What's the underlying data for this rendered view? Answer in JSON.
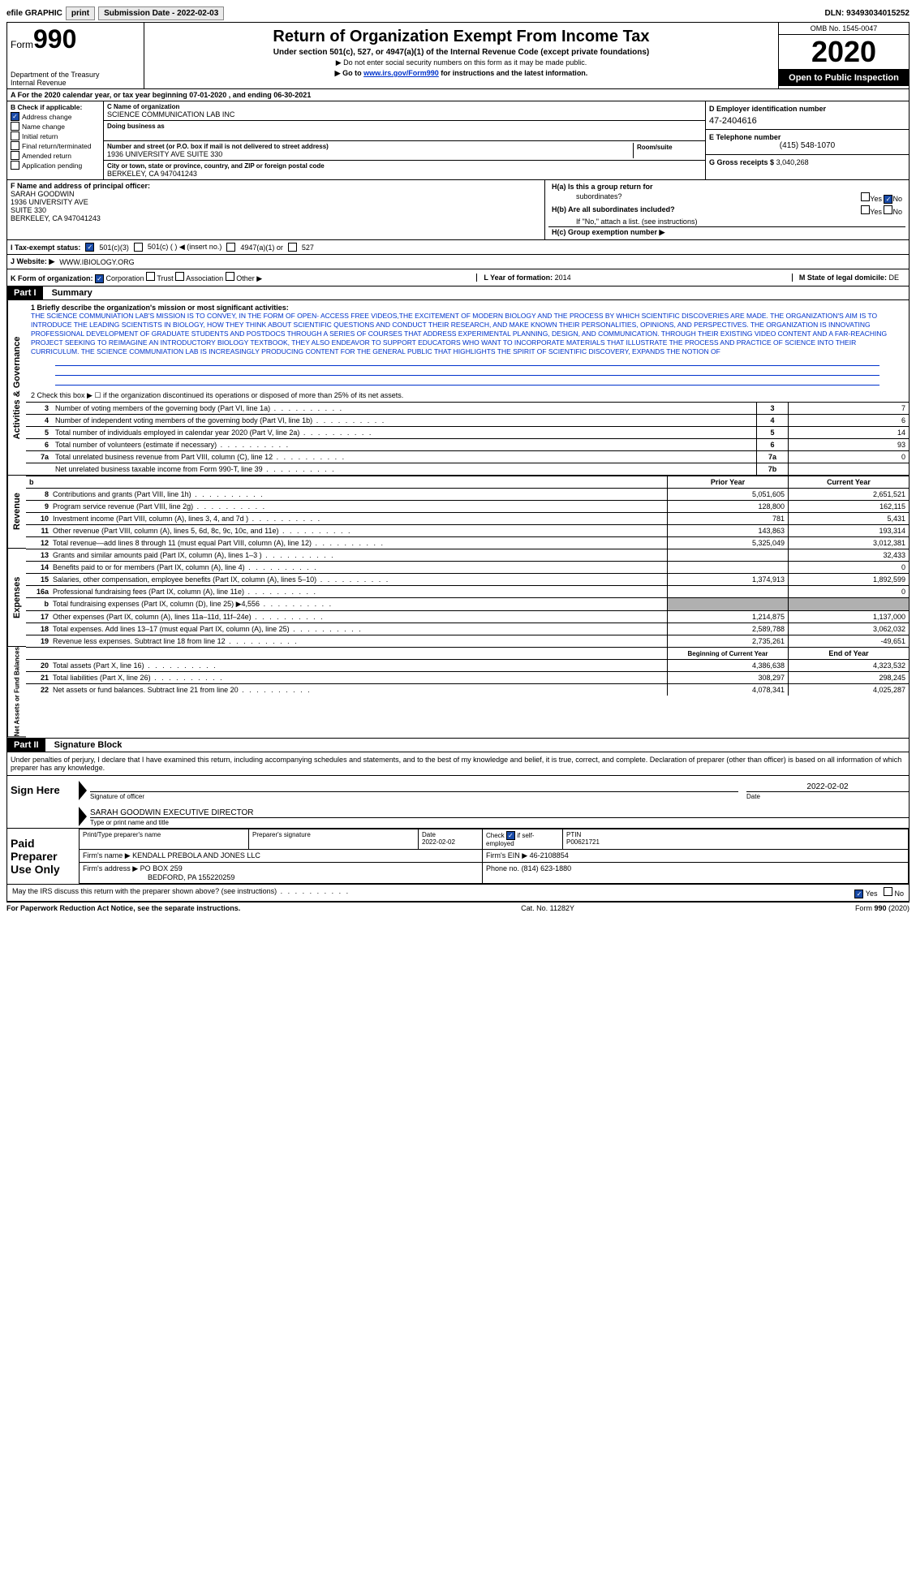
{
  "topbar": {
    "efile": "efile GRAPHIC",
    "print": "print",
    "subdate_label": "Submission Date - 2022-02-03",
    "dln_label": "DLN: 93493034015252"
  },
  "header": {
    "form_label": "Form",
    "form_num": "990",
    "dept": "Department of the Treasury\nInternal Revenue",
    "title": "Return of Organization Exempt From Income Tax",
    "subtitle": "Under section 501(c), 527, or 4947(a)(1) of the Internal Revenue Code (except private foundations)",
    "note1": "▶ Do not enter social security numbers on this form as it may be made public.",
    "note2_pre": "▶ Go to ",
    "note2_link": "www.irs.gov/Form990",
    "note2_post": " for instructions and the latest information.",
    "omb": "OMB No. 1545-0047",
    "year": "2020",
    "open": "Open to Public Inspection"
  },
  "period": "A For the 2020 calendar year, or tax year beginning 07-01-2020    , and ending 06-30-2021",
  "section_b": {
    "label": "B Check if applicable:",
    "items": [
      {
        "label": "Address change",
        "checked": true
      },
      {
        "label": "Name change",
        "checked": false
      },
      {
        "label": "Initial return",
        "checked": false
      },
      {
        "label": "Final return/terminated",
        "checked": false
      },
      {
        "label": "Amended return",
        "checked": false
      },
      {
        "label": "Application pending",
        "checked": false
      }
    ]
  },
  "section_c": {
    "name_label": "C Name of organization",
    "name": "SCIENCE COMMUNICATION LAB INC",
    "dba_label": "Doing business as",
    "dba": "",
    "addr_label": "Number and street (or P.O. box if mail is not delivered to street address)",
    "addr": "1936 UNIVERSITY AVE SUITE 330",
    "room_label": "Room/suite",
    "city_label": "City or town, state or province, country, and ZIP or foreign postal code",
    "city": "BERKELEY, CA  947041243"
  },
  "section_d": {
    "label": "D Employer identification number",
    "value": "47-2404616"
  },
  "section_e": {
    "label": "E Telephone number",
    "value": "(415) 548-1070"
  },
  "section_g": {
    "label": "G Gross receipts $",
    "value": "3,040,268"
  },
  "officer": {
    "label": "F  Name and address of principal officer:",
    "name": "SARAH GOODWIN",
    "addr1": "1936 UNIVERSITY AVE",
    "addr2": "SUITE 330",
    "city": "BERKELEY, CA  947041243"
  },
  "section_h": {
    "ha_label": "H(a)  Is this a group return for",
    "ha_sub": "subordinates?",
    "hb_label": "H(b)  Are all subordinates included?",
    "h_note": "If \"No,\" attach a list. (see instructions)",
    "hc_label": "H(c)  Group exemption number ▶",
    "yes": "Yes",
    "no": "No"
  },
  "status": {
    "label": "I  Tax-exempt status:",
    "opts": [
      "501(c)(3)",
      "501(c) (  ) ◀ (insert no.)",
      "4947(a)(1) or",
      "527"
    ]
  },
  "website": {
    "label": "J  Website: ▶",
    "value": "WWW.IBIOLOGY.ORG"
  },
  "korg": {
    "label": "K Form of organization:",
    "opts": [
      "Corporation",
      "Trust",
      "Association",
      "Other ▶"
    ],
    "l_label": "L Year of formation:",
    "l_value": "2014",
    "m_label": "M State of legal domicile:",
    "m_value": "DE"
  },
  "part1": {
    "header": "Part I",
    "title": "Summary",
    "q1_label": "1  Briefly describe the organization's mission or most significant activities:",
    "mission": "THE SCIENCE COMMUNIATION LAB'S MISSION IS TO CONVEY, IN THE FORM OF OPEN- ACCESS FREE VIDEOS,THE EXCITEMENT OF MODERN BIOLOGY AND THE PROCESS BY WHICH SCIENTIFIC DISCOVERIES ARE MADE. THE ORGANIZATION'S AIM IS TO INTRODUCE THE LEADING SCIENTISTS IN BIOLOGY, HOW THEY THINK ABOUT SCIENTIFIC QUESTIONS AND CONDUCT THEIR RESEARCH, AND MAKE KNOWN THEIR PERSONALITIES, OPINIONS, AND PERSPECTIVES. THE ORGANIZATION IS INNOVATING PROFESSIONAL DEVELOPMENT OF GRADUATE STUDENTS AND POSTDOCS THROUGH A SERIES OF COURSES THAT ADDRESS EXPERIMENTAL PLANNING, DESIGN, AND COMMUNICATION. THROUGH THEIR EXISTING VIDEO CONTENT AND A FAR-REACHING PROJECT SEEKING TO REIMAGINE AN INTRODUCTORY BIOLOGY TEXTBOOK, THEY ALSO ENDEAVOR TO SUPPORT EDUCATORS WHO WANT TO INCORPORATE MATERIALS THAT ILLUSTRATE THE PROCESS AND PRACTICE OF SCIENCE INTO THEIR CURRICULUM. THE SCIENCE COMMUNIATION LAB IS INCREASINGLY PRODUCING CONTENT FOR THE GENERAL PUBLIC THAT HIGHLIGHTS THE SPIRIT OF SCIENTIFIC DISCOVERY, EXPANDS THE NOTION OF",
    "q2": "2   Check this box ▶ ☐  if the organization discontinued its operations or disposed of more than 25% of its net assets.",
    "sidelabels": {
      "gov": "Activities & Governance",
      "rev": "Revenue",
      "exp": "Expenses",
      "net": "Net Assets or Fund Balances"
    },
    "gov_rows": [
      {
        "n": "3",
        "t": "Number of voting members of the governing body (Part VI, line 1a)",
        "c": "3",
        "v": "7"
      },
      {
        "n": "4",
        "t": "Number of independent voting members of the governing body (Part VI, line 1b)",
        "c": "4",
        "v": "6"
      },
      {
        "n": "5",
        "t": "Total number of individuals employed in calendar year 2020 (Part V, line 2a)",
        "c": "5",
        "v": "14"
      },
      {
        "n": "6",
        "t": "Total number of volunteers (estimate if necessary)",
        "c": "6",
        "v": "93"
      },
      {
        "n": "7a",
        "t": "Total unrelated business revenue from Part VIII, column (C), line 12",
        "c": "7a",
        "v": "0"
      },
      {
        "n": "",
        "t": "Net unrelated business taxable income from Form 990-T, line 39",
        "c": "7b",
        "v": ""
      }
    ],
    "year_head": {
      "b": "b",
      "prior": "Prior Year",
      "current": "Current Year"
    },
    "rev_rows": [
      {
        "n": "8",
        "t": "Contributions and grants (Part VIII, line 1h)",
        "p": "5,051,605",
        "c": "2,651,521"
      },
      {
        "n": "9",
        "t": "Program service revenue (Part VIII, line 2g)",
        "p": "128,800",
        "c": "162,115"
      },
      {
        "n": "10",
        "t": "Investment income (Part VIII, column (A), lines 3, 4, and 7d )",
        "p": "781",
        "c": "5,431"
      },
      {
        "n": "11",
        "t": "Other revenue (Part VIII, column (A), lines 5, 6d, 8c, 9c, 10c, and 11e)",
        "p": "143,863",
        "c": "193,314"
      },
      {
        "n": "12",
        "t": "Total revenue—add lines 8 through 11 (must equal Part VIII, column (A), line 12)",
        "p": "5,325,049",
        "c": "3,012,381"
      }
    ],
    "exp_rows": [
      {
        "n": "13",
        "t": "Grants and similar amounts paid (Part IX, column (A), lines 1–3 )",
        "p": "",
        "c": "32,433"
      },
      {
        "n": "14",
        "t": "Benefits paid to or for members (Part IX, column (A), line 4)",
        "p": "",
        "c": "0"
      },
      {
        "n": "15",
        "t": "Salaries, other compensation, employee benefits (Part IX, column (A), lines 5–10)",
        "p": "1,374,913",
        "c": "1,892,599"
      },
      {
        "n": "16a",
        "t": "Professional fundraising fees (Part IX, column (A), line 11e)",
        "p": "",
        "c": "0"
      },
      {
        "n": "b",
        "t": "Total fundraising expenses (Part IX, column (D), line 25) ▶4,556",
        "p": "grey",
        "c": "grey"
      },
      {
        "n": "17",
        "t": "Other expenses (Part IX, column (A), lines 11a–11d, 11f–24e)",
        "p": "1,214,875",
        "c": "1,137,000"
      },
      {
        "n": "18",
        "t": "Total expenses. Add lines 13–17 (must equal Part IX, column (A), line 25)",
        "p": "2,589,788",
        "c": "3,062,032"
      },
      {
        "n": "19",
        "t": "Revenue less expenses. Subtract line 18 from line 12",
        "p": "2,735,261",
        "c": "-49,651"
      }
    ],
    "net_head": {
      "prior": "Beginning of Current Year",
      "current": "End of Year"
    },
    "net_rows": [
      {
        "n": "20",
        "t": "Total assets (Part X, line 16)",
        "p": "4,386,638",
        "c": "4,323,532"
      },
      {
        "n": "21",
        "t": "Total liabilities (Part X, line 26)",
        "p": "308,297",
        "c": "298,245"
      },
      {
        "n": "22",
        "t": "Net assets or fund balances. Subtract line 21 from line 20",
        "p": "4,078,341",
        "c": "4,025,287"
      }
    ]
  },
  "part2": {
    "header": "Part II",
    "title": "Signature Block",
    "declaration": "Under penalties of perjury, I declare that I have examined this return, including accompanying schedules and statements, and to the best of my knowledge and belief, it is true, correct, and complete. Declaration of preparer (other than officer) is based on all information of which preparer has any knowledge.",
    "sign_here": "Sign Here",
    "sig_date": "2022-02-02",
    "sig_officer_label": "Signature of officer",
    "date_label": "Date",
    "officer_name": "SARAH GOODWIN  EXECUTIVE DIRECTOR",
    "type_label": "Type or print name and title",
    "paid": "Paid Preparer Use Only",
    "prep_name_label": "Print/Type preparer's name",
    "prep_sig_label": "Preparer's signature",
    "prep_date_label": "Date",
    "prep_date": "2022-02-02",
    "check_label": "Check ☑ if self-employed",
    "ptin_label": "PTIN",
    "ptin": "P00621721",
    "firm_name_label": "Firm's name    ▶",
    "firm_name": "KENDALL PREBOLA AND JONES LLC",
    "firm_ein_label": "Firm's EIN ▶",
    "firm_ein": "46-2108854",
    "firm_addr_label": "Firm's address ▶",
    "firm_addr": "PO BOX 259",
    "firm_city": "BEDFORD, PA  155220259",
    "phone_label": "Phone no.",
    "phone": "(814) 623-1880",
    "discuss": "May the IRS discuss this return with the preparer shown above? (see instructions)",
    "yes": "Yes",
    "no": "No"
  },
  "footer": {
    "left": "For Paperwork Reduction Act Notice, see the separate instructions.",
    "mid": "Cat. No. 11282Y",
    "right": "Form 990 (2020)"
  }
}
